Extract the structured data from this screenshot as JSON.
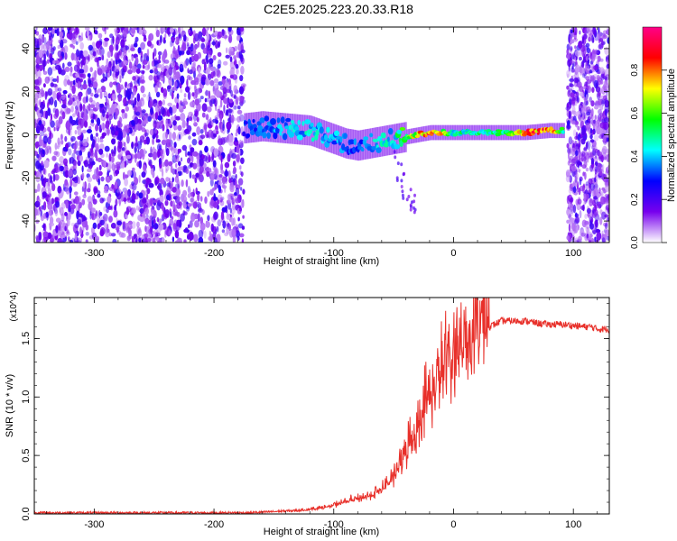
{
  "figure": {
    "title": "C2E5.2025.223.20.33.R18"
  },
  "chart_data": [
    {
      "type": "heatmap",
      "title": "C2E5.2025.223.20.33.R18",
      "xlabel": "Height of straight line (km)",
      "ylabel": "Frequency (Hz)",
      "xlim": [
        -350,
        130
      ],
      "ylim": [
        -50,
        50
      ],
      "xticks": [
        -300,
        -200,
        -100,
        0,
        100
      ],
      "yticks": [
        -40,
        -20,
        0,
        20,
        40
      ],
      "colorbar": {
        "label": "Normalized spectral amplitude",
        "range": [
          0,
          1
        ],
        "ticks": [
          0.0,
          0.2,
          0.4,
          0.6,
          0.8
        ],
        "colors": [
          "#ffffff",
          "#7700ee",
          "#0000ff",
          "#00ffff",
          "#00ff00",
          "#ffff00",
          "#ff0000",
          "#ff0088"
        ]
      },
      "noise_regions": [
        {
          "x_from": -350,
          "x_to": -175,
          "y_from": -50,
          "y_to": 50,
          "amplitude": 0.15
        },
        {
          "x_from": 95,
          "x_to": 130,
          "y_from": -50,
          "y_to": 50,
          "amplitude": 0.15
        }
      ],
      "ridge": {
        "x": [
          -175,
          -160,
          -140,
          -120,
          -100,
          -90,
          -80,
          -70,
          -60,
          -50,
          -40,
          -30,
          -20,
          -10,
          0,
          20,
          40,
          60,
          80,
          92
        ],
        "frequency": [
          3,
          4,
          3,
          2,
          -2,
          -4,
          -5,
          -4,
          -3,
          -2,
          -1,
          0,
          1,
          1,
          1,
          1,
          1,
          1,
          2,
          2
        ],
        "amplitude": [
          0.3,
          0.35,
          0.4,
          0.45,
          0.4,
          0.35,
          0.35,
          0.4,
          0.45,
          0.45,
          0.6,
          0.75,
          0.85,
          0.75,
          0.5,
          0.5,
          0.55,
          0.85,
          0.9,
          0.5
        ]
      },
      "grid": false
    },
    {
      "type": "line",
      "xlabel": "Height of straight line (km)",
      "ylabel": "SNR (10 * v/v)",
      "y_multiplier": "(x10^4)",
      "xlim": [
        -350,
        130
      ],
      "ylim": [
        0,
        1.85
      ],
      "xticks": [
        -300,
        -200,
        -100,
        0,
        100
      ],
      "yticks": [
        0.0,
        0.5,
        1.0,
        1.5
      ],
      "color": "#e8302a",
      "series": [
        {
          "x": [
            -350,
            -300,
            -250,
            -200,
            -170,
            -150,
            -130,
            -110,
            -100,
            -90,
            -80,
            -70,
            -60,
            -50,
            -45,
            -40,
            -35,
            -30,
            -25,
            -20,
            -15,
            -10,
            -5,
            0,
            5,
            10,
            15,
            20,
            25,
            30,
            40,
            50,
            60,
            70,
            80,
            90,
            100,
            110,
            115,
            120,
            130
          ],
          "values": [
            0.01,
            0.01,
            0.01,
            0.01,
            0.01,
            0.02,
            0.03,
            0.05,
            0.07,
            0.1,
            0.12,
            0.15,
            0.2,
            0.3,
            0.4,
            0.5,
            0.6,
            0.7,
            0.85,
            0.95,
            1.05,
            1.15,
            1.25,
            1.3,
            1.35,
            1.4,
            1.45,
            1.5,
            1.55,
            1.6,
            1.65,
            1.65,
            1.65,
            1.63,
            1.62,
            1.62,
            1.61,
            1.6,
            1.6,
            1.58,
            1.58
          ]
        }
      ],
      "grid": false
    }
  ]
}
